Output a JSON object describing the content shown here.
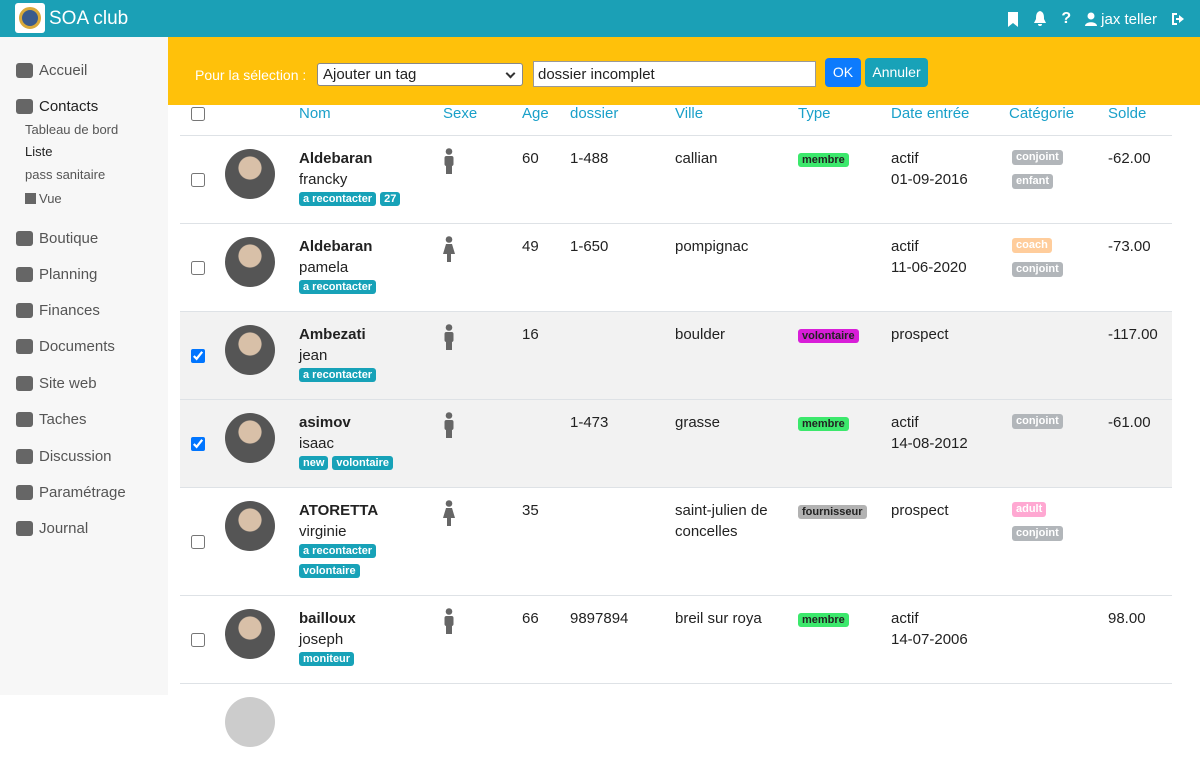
{
  "header": {
    "title": "SOA club",
    "user": "jax teller"
  },
  "sidebar": {
    "items": [
      {
        "label": "Accueil"
      },
      {
        "label": "Contacts",
        "children": [
          "Tableau de bord",
          "Liste",
          "pass sanitaire",
          "Vue"
        ]
      },
      {
        "label": "Boutique"
      },
      {
        "label": "Planning"
      },
      {
        "label": "Finances"
      },
      {
        "label": "Documents"
      },
      {
        "label": "Site web"
      },
      {
        "label": "Taches"
      },
      {
        "label": "Discussion"
      },
      {
        "label": "Paramétrage"
      },
      {
        "label": "Journal"
      }
    ]
  },
  "action_bar": {
    "label": "Pour la sélection :",
    "select": "Ajouter un tag",
    "input": "dossier incomplet",
    "ok": "OK",
    "cancel": "Annuler"
  },
  "table": {
    "columns": [
      "Nom",
      "Sexe",
      "Age",
      "dossier",
      "Ville",
      "Type",
      "Date entrée",
      "Catégorie",
      "Solde"
    ],
    "rows": [
      {
        "checked": false,
        "last": "Aldebaran",
        "first": "francky",
        "tags": [
          "a recontacter",
          "27"
        ],
        "sex": "m",
        "age": "60",
        "dossier": "1-488",
        "city": "callian",
        "type": {
          "label": "membre",
          "color": "#3ce86c"
        },
        "status": "actif",
        "date": "01-09-2016",
        "categories": [
          {
            "label": "conjoint",
            "color": "#b2b6ba"
          },
          {
            "label": "enfant",
            "color": "#b2b6ba"
          }
        ],
        "balance": "-62.00"
      },
      {
        "checked": false,
        "last": "Aldebaran",
        "first": "pamela",
        "tags": [
          "a recontacter"
        ],
        "sex": "f",
        "age": "49",
        "dossier": "1-650",
        "city": "pompignac",
        "status": "actif",
        "date": "11-06-2020",
        "categories": [
          {
            "label": "coach",
            "color": "#ffcd9c"
          },
          {
            "label": "conjoint",
            "color": "#b2b6ba"
          }
        ],
        "balance": "-73.00"
      },
      {
        "checked": true,
        "last": "Ambezati",
        "first": "jean",
        "tags": [
          "a recontacter"
        ],
        "sex": "m",
        "age": "16",
        "city": "boulder",
        "type": {
          "label": "volontaire",
          "color": "#d81ed8"
        },
        "status": "prospect",
        "categories": [],
        "balance": "-117.00"
      },
      {
        "checked": true,
        "last": "asimov",
        "first": "isaac",
        "tags": [
          "new",
          "volontaire"
        ],
        "sex": "m",
        "dossier": "1-473",
        "city": "grasse",
        "type": {
          "label": "membre",
          "color": "#3ce86c"
        },
        "status": "actif",
        "date": "14-08-2012",
        "categories": [
          {
            "label": "conjoint",
            "color": "#b2b6ba"
          }
        ],
        "balance": "-61.00"
      },
      {
        "checked": false,
        "last": "ATORETTA",
        "first": "virginie",
        "tags": [
          "a recontacter",
          "volontaire"
        ],
        "sex": "f",
        "age": "35",
        "city": "saint-julien de concelles",
        "type": {
          "label": "fournisseur",
          "color": "#b2b2b2"
        },
        "status": "prospect",
        "categories": [
          {
            "label": "adult",
            "color": "#ffa8d2"
          },
          {
            "label": "conjoint",
            "color": "#b2b6ba"
          }
        ]
      },
      {
        "checked": false,
        "last": "bailloux",
        "first": "joseph",
        "tags": [
          "moniteur"
        ],
        "sex": "m",
        "age": "66",
        "dossier": "9897894",
        "city": "breil sur roya",
        "type": {
          "label": "membre",
          "color": "#3ce86c"
        },
        "status": "actif",
        "date": "14-07-2006",
        "categories": [],
        "balance": "98.00"
      }
    ]
  }
}
